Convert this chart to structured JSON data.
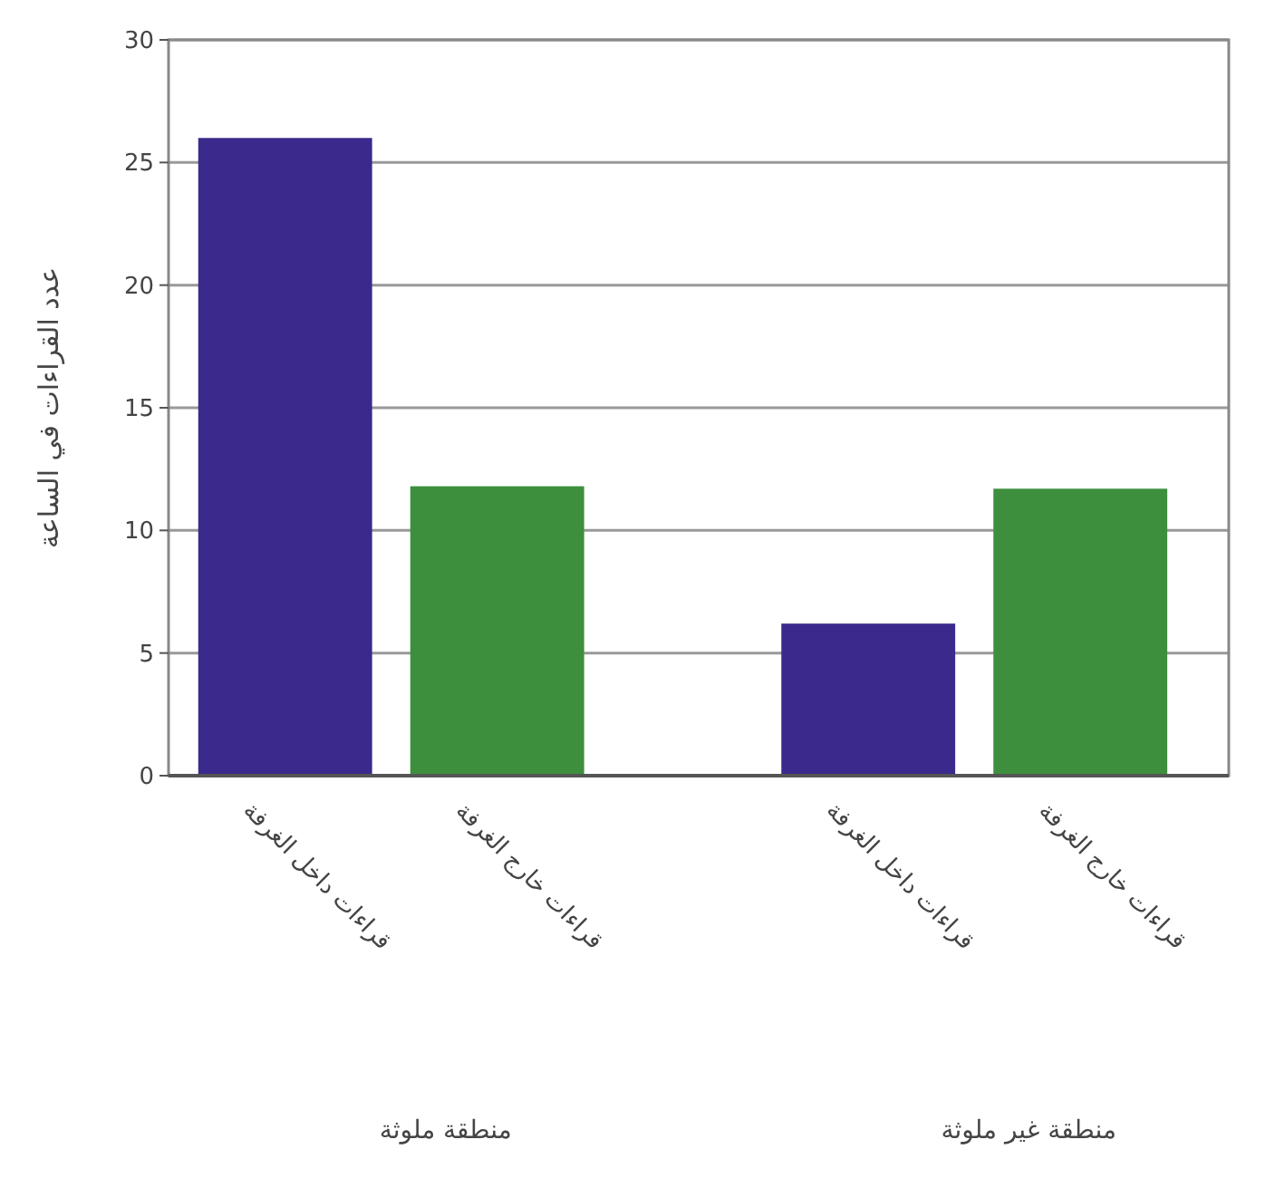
{
  "chart_data": {
    "type": "bar",
    "ylabel": "عدد القراءات في الساعة",
    "categories": [
      "قراءات داخل الغرفة",
      "قراءات خارج الغرفة",
      "قراءات داخل الغرفة",
      "قراءات خارج الغرفة"
    ],
    "values": [
      26,
      11.8,
      6.2,
      11.7
    ],
    "colors": [
      "#3b2a8c",
      "#3d8f3d",
      "#3b2a8c",
      "#3d8f3d"
    ],
    "ylim": [
      0,
      30
    ],
    "yticks": [
      0,
      5,
      10,
      15,
      20,
      25,
      30
    ],
    "grid": "y",
    "annotations": [
      "منطقة ملوثة",
      "منطقة غير ملوثة"
    ]
  }
}
